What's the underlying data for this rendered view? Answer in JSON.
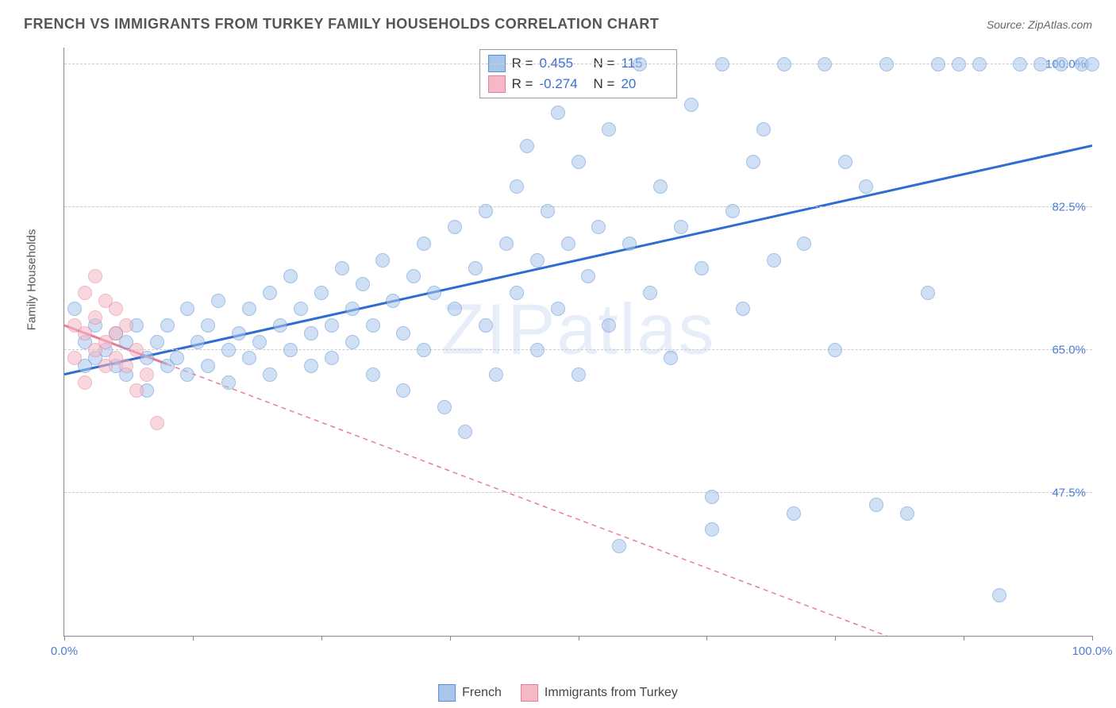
{
  "header": {
    "title": "FRENCH VS IMMIGRANTS FROM TURKEY FAMILY HOUSEHOLDS CORRELATION CHART",
    "source_prefix": "Source: ",
    "source_name": "ZipAtlas.com"
  },
  "chart": {
    "type": "scatter",
    "ylabel": "Family Households",
    "watermark": "ZIPatlas",
    "background_color": "#ffffff",
    "grid_color": "#cccccc",
    "axis_color": "#888888",
    "tick_label_color": "#4a7fd6",
    "xlim": [
      0,
      100
    ],
    "ylim": [
      30,
      102
    ],
    "xticks": [
      0,
      12.5,
      25,
      37.5,
      50,
      62.5,
      75,
      87.5,
      100
    ],
    "xtick_labels": {
      "0": "0.0%",
      "100": "100.0%"
    },
    "yticks": [
      47.5,
      65.0,
      82.5,
      100.0
    ],
    "ytick_labels": [
      "47.5%",
      "65.0%",
      "82.5%",
      "100.0%"
    ],
    "marker_radius": 9,
    "marker_opacity": 0.55,
    "line_width": 3,
    "legend": {
      "series1_label": "French",
      "series2_label": "Immigrants from Turkey"
    },
    "stats": {
      "r_label": "R =",
      "n_label": "N =",
      "series1_r": "0.455",
      "series1_n": "115",
      "series2_r": "-0.274",
      "series2_n": "20"
    },
    "series": [
      {
        "name": "french",
        "fill_color": "#a8c5ec",
        "border_color": "#5b8dd6",
        "trend_color": "#2e6cd1",
        "trend_dash": "none",
        "trend": {
          "x1": 0,
          "y1": 62,
          "x2": 100,
          "y2": 90
        },
        "points": [
          [
            1,
            70
          ],
          [
            2,
            66
          ],
          [
            2,
            63
          ],
          [
            3,
            68
          ],
          [
            3,
            64
          ],
          [
            4,
            65
          ],
          [
            5,
            67
          ],
          [
            5,
            63
          ],
          [
            6,
            66
          ],
          [
            6,
            62
          ],
          [
            7,
            68
          ],
          [
            8,
            64
          ],
          [
            8,
            60
          ],
          [
            9,
            66
          ],
          [
            10,
            63
          ],
          [
            10,
            68
          ],
          [
            11,
            64
          ],
          [
            12,
            70
          ],
          [
            12,
            62
          ],
          [
            13,
            66
          ],
          [
            14,
            68
          ],
          [
            14,
            63
          ],
          [
            15,
            71
          ],
          [
            16,
            65
          ],
          [
            16,
            61
          ],
          [
            17,
            67
          ],
          [
            18,
            64
          ],
          [
            18,
            70
          ],
          [
            19,
            66
          ],
          [
            20,
            72
          ],
          [
            20,
            62
          ],
          [
            21,
            68
          ],
          [
            22,
            65
          ],
          [
            22,
            74
          ],
          [
            23,
            70
          ],
          [
            24,
            63
          ],
          [
            24,
            67
          ],
          [
            25,
            72
          ],
          [
            26,
            68
          ],
          [
            26,
            64
          ],
          [
            27,
            75
          ],
          [
            28,
            70
          ],
          [
            28,
            66
          ],
          [
            29,
            73
          ],
          [
            30,
            68
          ],
          [
            30,
            62
          ],
          [
            31,
            76
          ],
          [
            32,
            71
          ],
          [
            33,
            67
          ],
          [
            33,
            60
          ],
          [
            34,
            74
          ],
          [
            35,
            78
          ],
          [
            35,
            65
          ],
          [
            36,
            72
          ],
          [
            37,
            58
          ],
          [
            38,
            80
          ],
          [
            38,
            70
          ],
          [
            39,
            55
          ],
          [
            40,
            75
          ],
          [
            41,
            82
          ],
          [
            41,
            68
          ],
          [
            42,
            62
          ],
          [
            43,
            78
          ],
          [
            44,
            85
          ],
          [
            44,
            72
          ],
          [
            45,
            90
          ],
          [
            46,
            76
          ],
          [
            46,
            65
          ],
          [
            47,
            82
          ],
          [
            48,
            94
          ],
          [
            48,
            70
          ],
          [
            49,
            78
          ],
          [
            50,
            88
          ],
          [
            50,
            62
          ],
          [
            51,
            74
          ],
          [
            52,
            80
          ],
          [
            53,
            92
          ],
          [
            53,
            68
          ],
          [
            54,
            41
          ],
          [
            55,
            78
          ],
          [
            56,
            100
          ],
          [
            57,
            72
          ],
          [
            58,
            85
          ],
          [
            59,
            64
          ],
          [
            60,
            80
          ],
          [
            61,
            95
          ],
          [
            62,
            75
          ],
          [
            63,
            47
          ],
          [
            64,
            100
          ],
          [
            65,
            82
          ],
          [
            66,
            70
          ],
          [
            67,
            88
          ],
          [
            68,
            92
          ],
          [
            69,
            76
          ],
          [
            70,
            100
          ],
          [
            71,
            45
          ],
          [
            72,
            78
          ],
          [
            74,
            100
          ],
          [
            75,
            65
          ],
          [
            76,
            88
          ],
          [
            78,
            85
          ],
          [
            79,
            46
          ],
          [
            80,
            100
          ],
          [
            82,
            45
          ],
          [
            84,
            72
          ],
          [
            85,
            100
          ],
          [
            87,
            100
          ],
          [
            89,
            100
          ],
          [
            91,
            35
          ],
          [
            93,
            100
          ],
          [
            95,
            100
          ],
          [
            97,
            100
          ],
          [
            99,
            100
          ],
          [
            100,
            100
          ],
          [
            63,
            43
          ]
        ]
      },
      {
        "name": "turkey",
        "fill_color": "#f5b8c6",
        "border_color": "#e87d98",
        "trend_color": "#e87d98",
        "trend_dash": "6,5",
        "trend_solid_until_x": 10,
        "trend": {
          "x1": 0,
          "y1": 68,
          "x2": 80,
          "y2": 30
        },
        "points": [
          [
            1,
            68
          ],
          [
            1,
            64
          ],
          [
            2,
            72
          ],
          [
            2,
            67
          ],
          [
            2,
            61
          ],
          [
            3,
            74
          ],
          [
            3,
            69
          ],
          [
            3,
            65
          ],
          [
            4,
            71
          ],
          [
            4,
            66
          ],
          [
            4,
            63
          ],
          [
            5,
            70
          ],
          [
            5,
            67
          ],
          [
            5,
            64
          ],
          [
            6,
            68
          ],
          [
            6,
            63
          ],
          [
            7,
            65
          ],
          [
            7,
            60
          ],
          [
            8,
            62
          ],
          [
            9,
            56
          ]
        ]
      }
    ]
  }
}
